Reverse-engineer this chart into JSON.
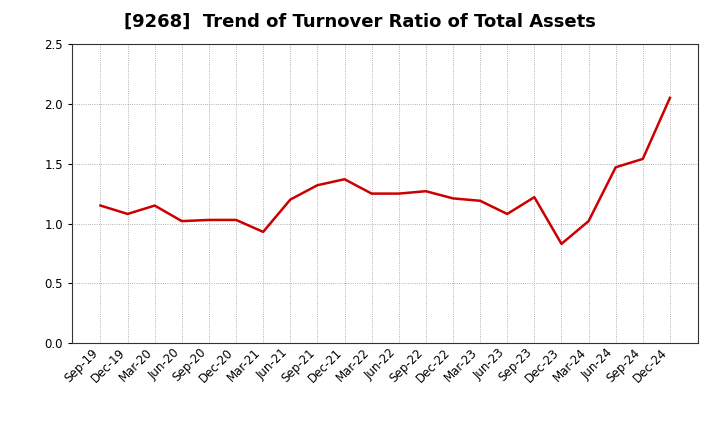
{
  "title": "[9268]  Trend of Turnover Ratio of Total Assets",
  "labels": [
    "Sep-19",
    "Dec-19",
    "Mar-20",
    "Jun-20",
    "Sep-20",
    "Dec-20",
    "Mar-21",
    "Jun-21",
    "Sep-21",
    "Dec-21",
    "Mar-22",
    "Jun-22",
    "Sep-22",
    "Dec-22",
    "Mar-23",
    "Jun-23",
    "Sep-23",
    "Dec-23",
    "Mar-24",
    "Jun-24",
    "Sep-24",
    "Dec-24"
  ],
  "values": [
    1.15,
    1.08,
    1.15,
    1.02,
    1.03,
    1.03,
    0.93,
    1.2,
    1.32,
    1.37,
    1.25,
    1.25,
    1.27,
    1.21,
    1.19,
    1.08,
    1.22,
    0.83,
    1.02,
    1.47,
    1.54,
    2.05
  ],
  "line_color": "#cc0000",
  "line_width": 1.8,
  "ylim": [
    0.0,
    2.5
  ],
  "yticks": [
    0.0,
    0.5,
    1.0,
    1.5,
    2.0,
    2.5
  ],
  "grid_color": "#999999",
  "background_color": "#ffffff",
  "title_fontsize": 13,
  "tick_fontsize": 8.5,
  "fig_width": 7.2,
  "fig_height": 4.4,
  "dpi": 100
}
